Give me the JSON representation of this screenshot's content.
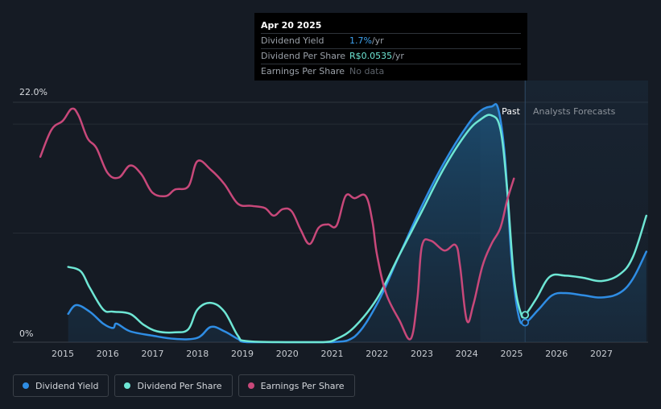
{
  "chart_data": {
    "type": "line",
    "title": "",
    "xlabel": "",
    "ylabel": "",
    "x_ticks": [
      "2015",
      "2016",
      "2017",
      "2018",
      "2019",
      "2020",
      "2021",
      "2022",
      "2023",
      "2024",
      "2025",
      "2026",
      "2027"
    ],
    "y_tick_labels": [
      "22.0%",
      "0%"
    ],
    "ylim": [
      0,
      22
    ],
    "xlim": [
      2014.5,
      2028.0
    ],
    "grid": true,
    "legend_position": "bottom-left",
    "regions": {
      "past_label": "Past",
      "forecast_label": "Analysts Forecasts",
      "split_x": 2025.3
    },
    "series": [
      {
        "name": "Dividend Yield",
        "color": "#2f8de4",
        "points": [
          [
            2015.12,
            2.6
          ],
          [
            2015.3,
            3.4
          ],
          [
            2015.6,
            2.8
          ],
          [
            2015.9,
            1.7
          ],
          [
            2016.12,
            1.3
          ],
          [
            2016.2,
            1.7
          ],
          [
            2016.5,
            1.0
          ],
          [
            2017.0,
            0.6
          ],
          [
            2017.5,
            0.3
          ],
          [
            2018.0,
            0.4
          ],
          [
            2018.3,
            1.4
          ],
          [
            2018.6,
            1.0
          ],
          [
            2018.9,
            0.3
          ],
          [
            2019.1,
            0.0
          ],
          [
            2020.0,
            0.0
          ],
          [
            2021.0,
            0.0
          ],
          [
            2021.5,
            0.5
          ],
          [
            2022.0,
            3.5
          ],
          [
            2022.5,
            8.0
          ],
          [
            2023.0,
            12.5
          ],
          [
            2023.5,
            16.5
          ],
          [
            2024.0,
            19.8
          ],
          [
            2024.3,
            21.2
          ],
          [
            2024.55,
            21.6
          ],
          [
            2024.7,
            21.4
          ],
          [
            2024.85,
            17.0
          ],
          [
            2025.0,
            7.5
          ],
          [
            2025.15,
            2.5
          ],
          [
            2025.3,
            1.8
          ],
          [
            2025.6,
            3.0
          ],
          [
            2025.9,
            4.3
          ],
          [
            2026.2,
            4.5
          ],
          [
            2026.6,
            4.3
          ],
          [
            2027.0,
            4.1
          ],
          [
            2027.4,
            4.5
          ],
          [
            2027.7,
            5.8
          ],
          [
            2028.0,
            8.3
          ]
        ]
      },
      {
        "name": "Dividend Per Share",
        "color": "#6ee6d4",
        "points": [
          [
            2015.12,
            6.9
          ],
          [
            2015.4,
            6.5
          ],
          [
            2015.6,
            5.0
          ],
          [
            2015.9,
            3.0
          ],
          [
            2016.12,
            2.8
          ],
          [
            2016.5,
            2.6
          ],
          [
            2016.8,
            1.6
          ],
          [
            2017.1,
            1.0
          ],
          [
            2017.5,
            0.9
          ],
          [
            2017.8,
            1.2
          ],
          [
            2018.0,
            3.0
          ],
          [
            2018.3,
            3.6
          ],
          [
            2018.6,
            2.8
          ],
          [
            2018.9,
            0.6
          ],
          [
            2019.1,
            0.1
          ],
          [
            2020.0,
            0.0
          ],
          [
            2020.8,
            0.0
          ],
          [
            2021.1,
            0.3
          ],
          [
            2021.5,
            1.4
          ],
          [
            2022.0,
            4.0
          ],
          [
            2022.5,
            8.0
          ],
          [
            2023.0,
            12.0
          ],
          [
            2023.5,
            16.0
          ],
          [
            2024.0,
            19.2
          ],
          [
            2024.3,
            20.4
          ],
          [
            2024.55,
            20.8
          ],
          [
            2024.75,
            19.5
          ],
          [
            2024.9,
            14.0
          ],
          [
            2025.05,
            6.0
          ],
          [
            2025.2,
            2.7
          ],
          [
            2025.3,
            2.5
          ],
          [
            2025.55,
            4.0
          ],
          [
            2025.85,
            6.0
          ],
          [
            2026.2,
            6.1
          ],
          [
            2026.6,
            5.9
          ],
          [
            2027.0,
            5.6
          ],
          [
            2027.4,
            6.2
          ],
          [
            2027.7,
            7.8
          ],
          [
            2028.0,
            11.6
          ]
        ]
      },
      {
        "name": "Earnings Per Share",
        "color": "#c8487a",
        "points": [
          [
            2014.5,
            17.0
          ],
          [
            2014.75,
            19.5
          ],
          [
            2015.0,
            20.3
          ],
          [
            2015.2,
            21.4
          ],
          [
            2015.35,
            20.8
          ],
          [
            2015.55,
            18.7
          ],
          [
            2015.75,
            17.8
          ],
          [
            2016.0,
            15.5
          ],
          [
            2016.25,
            15.1
          ],
          [
            2016.5,
            16.2
          ],
          [
            2016.75,
            15.4
          ],
          [
            2017.0,
            13.7
          ],
          [
            2017.3,
            13.4
          ],
          [
            2017.5,
            14.0
          ],
          [
            2017.8,
            14.3
          ],
          [
            2018.0,
            16.6
          ],
          [
            2018.3,
            15.8
          ],
          [
            2018.6,
            14.5
          ],
          [
            2018.9,
            12.7
          ],
          [
            2019.2,
            12.5
          ],
          [
            2019.5,
            12.3
          ],
          [
            2019.7,
            11.6
          ],
          [
            2019.9,
            12.2
          ],
          [
            2020.1,
            12.0
          ],
          [
            2020.3,
            10.3
          ],
          [
            2020.5,
            9.0
          ],
          [
            2020.7,
            10.5
          ],
          [
            2020.9,
            10.8
          ],
          [
            2021.1,
            10.7
          ],
          [
            2021.3,
            13.4
          ],
          [
            2021.5,
            13.2
          ],
          [
            2021.75,
            13.4
          ],
          [
            2021.9,
            11.0
          ],
          [
            2022.0,
            8.0
          ],
          [
            2022.2,
            4.5
          ],
          [
            2022.5,
            2.0
          ],
          [
            2022.75,
            0.3
          ],
          [
            2022.9,
            4.0
          ],
          [
            2023.0,
            8.8
          ],
          [
            2023.2,
            9.3
          ],
          [
            2023.5,
            8.4
          ],
          [
            2023.75,
            8.9
          ],
          [
            2023.85,
            7.0
          ],
          [
            2024.0,
            2.0
          ],
          [
            2024.15,
            3.5
          ],
          [
            2024.35,
            7.0
          ],
          [
            2024.55,
            9.0
          ],
          [
            2024.75,
            10.5
          ],
          [
            2024.9,
            13.0
          ],
          [
            2025.05,
            15.0
          ]
        ]
      }
    ],
    "highlight_x": 2025.3
  },
  "tooltip": {
    "date": "Apr 20 2025",
    "rows": [
      {
        "label": "Dividend Yield",
        "value": "1.7%",
        "unit": " /yr"
      },
      {
        "label": "Dividend Per Share",
        "value": "R$0.0535",
        "unit": " /yr"
      },
      {
        "label": "Earnings Per Share",
        "value": "No data",
        "unit": ""
      }
    ]
  },
  "legend": [
    {
      "label": "Dividend Yield",
      "color": "#2f8de4"
    },
    {
      "label": "Dividend Per Share",
      "color": "#6ee6d4"
    },
    {
      "label": "Earnings Per Share",
      "color": "#c8487a"
    }
  ]
}
